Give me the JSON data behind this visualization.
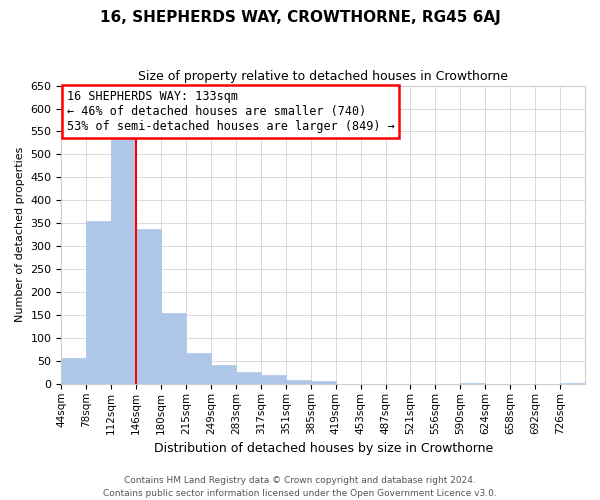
{
  "title": "16, SHEPHERDS WAY, CROWTHORNE, RG45 6AJ",
  "subtitle": "Size of property relative to detached houses in Crowthorne",
  "xlabel": "Distribution of detached houses by size in Crowthorne",
  "ylabel": "Number of detached properties",
  "bar_labels": [
    "44sqm",
    "78sqm",
    "112sqm",
    "146sqm",
    "180sqm",
    "215sqm",
    "249sqm",
    "283sqm",
    "317sqm",
    "351sqm",
    "385sqm",
    "419sqm",
    "453sqm",
    "487sqm",
    "521sqm",
    "556sqm",
    "590sqm",
    "624sqm",
    "658sqm",
    "692sqm",
    "726sqm"
  ],
  "bar_values": [
    57,
    355,
    545,
    338,
    155,
    68,
    42,
    25,
    20,
    8,
    7,
    0,
    0,
    0,
    0,
    0,
    3,
    0,
    0,
    0,
    3
  ],
  "bar_color": "#aec6e8",
  "bar_edge_color": "#aec6e8",
  "vline_color": "red",
  "annotation_title": "16 SHEPHERDS WAY: 133sqm",
  "annotation_line1": "← 46% of detached houses are smaller (740)",
  "annotation_line2": "53% of semi-detached houses are larger (849) →",
  "ylim": [
    0,
    650
  ],
  "yticks": [
    0,
    50,
    100,
    150,
    200,
    250,
    300,
    350,
    400,
    450,
    500,
    550,
    600,
    650
  ],
  "footer_line1": "Contains HM Land Registry data © Crown copyright and database right 2024.",
  "footer_line2": "Contains public sector information licensed under the Open Government Licence v3.0.",
  "bg_color": "#ffffff",
  "grid_color": "#cccccc",
  "title_fontsize": 11,
  "subtitle_fontsize": 9,
  "ylabel_fontsize": 8,
  "xlabel_fontsize": 9,
  "tick_fontsize": 8,
  "xtick_fontsize": 7.5,
  "footer_fontsize": 6.5,
  "ann_fontsize": 8.5
}
